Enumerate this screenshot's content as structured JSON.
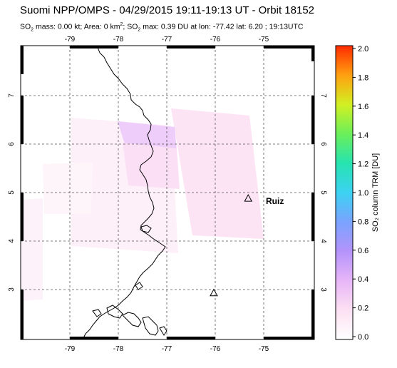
{
  "header": {
    "title": "Suomi NPP/OMPS - 04/29/2015 19:11-19:13 UT - Orbit 18152",
    "subtitle_prefix": "SO",
    "subtitle_sub": "2",
    "subtitle_mid": " mass: 0.00 kt; Area: 0 km",
    "subtitle_sup": "2",
    "subtitle_so": "; SO",
    "subtitle_sub2": "2",
    "subtitle_rest": " max: 0.39 DU at lon: -77.42 lat: 6.20 ; 19:13UTC"
  },
  "map": {
    "lon_ticks": [
      "-79",
      "-78",
      "-77",
      "-76",
      "-75"
    ],
    "lat_ticks": [
      "7",
      "6",
      "5",
      "4",
      "3"
    ],
    "volcano_label": "Ruiz",
    "volcanoes": [
      {
        "name": "Ruiz",
        "lon": -75.32,
        "lat": 4.88
      },
      {
        "name": "",
        "lon": -76.03,
        "lat": 2.93
      }
    ]
  },
  "colorbar": {
    "label": "SO₂ column TRM [DU]",
    "ticks": [
      "2.0",
      "1.8",
      "1.6",
      "1.4",
      "1.2",
      "1.0",
      "0.8",
      "0.6",
      "0.4",
      "0.2",
      "0.0"
    ]
  }
}
